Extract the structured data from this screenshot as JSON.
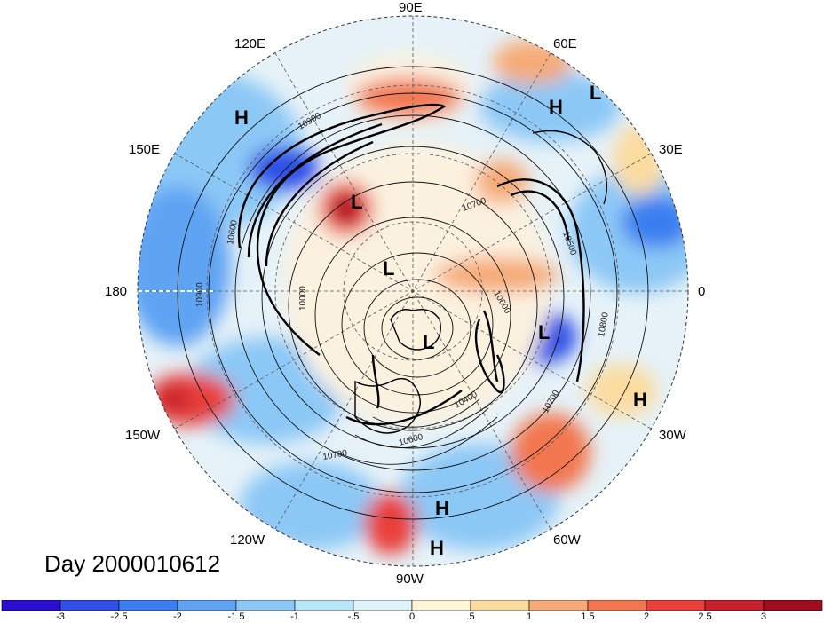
{
  "title": "Day 2000010612",
  "projection": "north-polar-stereographic",
  "longitude_labels": {
    "90E": "90E",
    "60E": "60E",
    "30E": "30E",
    "0": "0",
    "30W": "30W",
    "60W": "60W",
    "90W": "90W",
    "120W": "120W",
    "150W": "150W",
    "180": "180",
    "150E": "150E",
    "120E": "120E"
  },
  "pressure_centers": [
    {
      "label": "H",
      "id": "h-120e"
    },
    {
      "label": "H",
      "id": "h-60e"
    },
    {
      "label": "L",
      "id": "l-50e"
    },
    {
      "label": "L",
      "id": "l-east-siberia"
    },
    {
      "label": "L",
      "id": "l-arctic"
    },
    {
      "label": "L",
      "id": "l-greenland"
    },
    {
      "label": "L",
      "id": "l-north-atlantic"
    },
    {
      "label": "H",
      "id": "h-atlantic"
    },
    {
      "label": "H",
      "id": "h-caribbean"
    },
    {
      "label": "H",
      "id": "h-pacific-south"
    }
  ],
  "contour_labels": [
    "10900",
    "10700",
    "10500",
    "10900",
    "10600",
    "10000",
    "10400",
    "10600",
    "10700",
    "10700",
    "10800",
    "10600"
  ],
  "colorbar": {
    "ticks": [
      "-3",
      "-2.5",
      "-2",
      "-1.5",
      "-1",
      "-.5",
      "0",
      ".5",
      "1",
      "1.5",
      "2",
      "2.5",
      "3"
    ],
    "colors": [
      "#2a0fd0",
      "#2f4fe6",
      "#3b7ef0",
      "#5fa3f3",
      "#8cc8f6",
      "#b7e7f8",
      "#dff4fa",
      "#fff6d8",
      "#fbdca0",
      "#f6aa77",
      "#f2774f",
      "#e9413a",
      "#c8202c",
      "#a00d20"
    ]
  },
  "colors": {
    "high_red": "#c8202c",
    "low_blue": "#2f4fe6",
    "neutral": "#fbf6e9",
    "contour": "#000000"
  }
}
